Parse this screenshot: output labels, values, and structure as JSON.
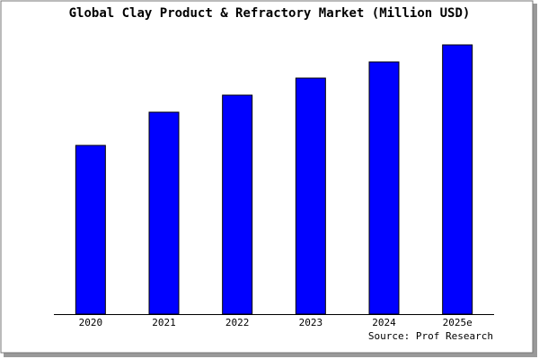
{
  "chart_data": {
    "type": "bar",
    "title": "Global Clay Product & Refractory Market (Million USD)",
    "categories": [
      "2020",
      "2021",
      "2022",
      "2023",
      "2024",
      "2025e"
    ],
    "values": [
      188,
      225,
      244,
      263,
      281,
      300
    ],
    "color": "#0000ff",
    "source": "Source: Prof Research"
  }
}
